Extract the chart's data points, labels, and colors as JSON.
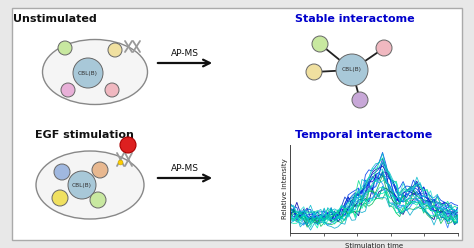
{
  "bg_color": "#e8e8e8",
  "panel_bg": "#ffffff",
  "title_top_left": "Unstimulated",
  "title_top_right": "Stable interactome",
  "title_bottom_left": "EGF stimulation",
  "title_bottom_right": "Temporal interactome",
  "arrow_label": "AP-MS",
  "ylabel_temporal": "Relative intensity",
  "xlabel_temporal": "Stimulation time",
  "cbl_label": "CBL(B)",
  "node_center_color": "#a8c8d8",
  "node_colors_unstim": [
    "#c8e8a0",
    "#f0e0a0",
    "#e8b0d8",
    "#f0b8c0"
  ],
  "node_colors_stable": [
    "#c8e8a0",
    "#f0b8c0",
    "#f0e0a0",
    "#c8a8d8"
  ],
  "node_colors_egf": [
    "#a0b8e0",
    "#e8b890",
    "#f0e060",
    "#c8e8a0"
  ],
  "egf_receptor_color": "#dd2020",
  "panel_border_color": "#aaaaaa",
  "arrow_color": "#111111",
  "title_color_left": "#111111",
  "title_color_right": "#0000cc"
}
